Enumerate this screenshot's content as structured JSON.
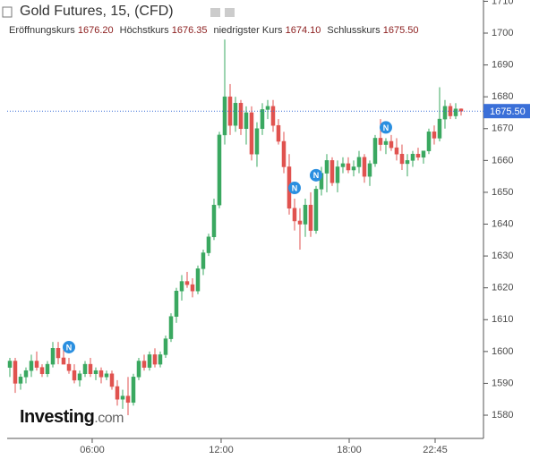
{
  "chart_data": {
    "type": "candlestick",
    "title": "Gold Futures, 15, (CFD)",
    "ohlc_legend": [
      {
        "label": "Eröffnungskurs",
        "value": "1676.20"
      },
      {
        "label": "Höchstkurs",
        "value": "1676.35"
      },
      {
        "label": "niedrigster Kurs",
        "value": "1674.10"
      },
      {
        "label": "Schlusskurs",
        "value": "1675.50"
      }
    ],
    "logo": {
      "name": "Investing",
      "suffix": ".com"
    },
    "up_color": "#3aa860",
    "down_color": "#e0524f",
    "x": [
      0,
      1,
      2,
      3,
      4,
      5,
      6,
      7,
      8,
      9,
      10,
      11,
      12,
      13,
      14,
      15,
      16,
      17,
      18,
      19,
      20,
      21,
      22,
      23,
      24,
      25,
      26,
      27,
      28,
      29,
      30,
      31,
      32,
      33,
      34,
      35,
      36,
      37,
      38,
      39,
      40,
      41,
      42,
      43,
      44,
      45,
      46,
      47,
      48,
      49,
      50,
      51,
      52,
      53,
      54,
      55,
      56,
      57,
      58,
      59,
      60,
      61,
      62,
      63,
      64,
      65,
      66,
      67,
      68,
      69,
      70,
      71,
      72,
      73,
      74,
      75,
      76,
      77,
      78,
      79,
      80,
      81,
      82,
      83,
      84
    ],
    "open": [
      1595,
      1597,
      1590,
      1592,
      1594,
      1597,
      1595,
      1593,
      1596,
      1601,
      1598,
      1596,
      1594,
      1591,
      1593,
      1596,
      1593,
      1594,
      1592,
      1593,
      1589,
      1585,
      1586,
      1584,
      1592,
      1597,
      1595,
      1599,
      1596,
      1599,
      1604,
      1611,
      1619,
      1622,
      1621,
      1619,
      1626,
      1631,
      1636,
      1646,
      1668,
      1680,
      1671,
      1678,
      1670,
      1675,
      1662,
      1670,
      1676,
      1677,
      1671,
      1666,
      1658,
      1645,
      1641,
      1640,
      1646,
      1638,
      1651,
      1656,
      1660,
      1653,
      1658,
      1659,
      1657,
      1658,
      1661,
      1655,
      1659,
      1667,
      1665,
      1666,
      1664,
      1662,
      1659,
      1660,
      1662,
      1661,
      1663,
      1669,
      1667,
      1673,
      1677,
      1674,
      1676.2
    ],
    "high": [
      1598,
      1598,
      1593,
      1595,
      1599,
      1600,
      1596,
      1597,
      1603,
      1603,
      1601,
      1598,
      1596,
      1594,
      1597,
      1598,
      1595,
      1595,
      1594,
      1594,
      1591,
      1588,
      1592,
      1593,
      1598,
      1599,
      1600,
      1601,
      1600,
      1605,
      1612,
      1620,
      1624,
      1625,
      1623,
      1627,
      1632,
      1637,
      1648,
      1669,
      1698,
      1684,
      1680,
      1679,
      1677,
      1677,
      1672,
      1678,
      1679,
      1679,
      1673,
      1669,
      1662,
      1648,
      1645,
      1648,
      1650,
      1652,
      1658,
      1662,
      1661,
      1660,
      1661,
      1661,
      1660,
      1663,
      1662,
      1660,
      1668,
      1673,
      1667,
      1668,
      1667,
      1665,
      1662,
      1663,
      1664,
      1663,
      1670,
      1671,
      1683,
      1679,
      1678,
      1678,
      1676.35
    ],
    "low": [
      1592,
      1587,
      1588,
      1590,
      1592,
      1594,
      1592,
      1592,
      1595,
      1596,
      1596,
      1593,
      1590,
      1589,
      1592,
      1592,
      1591,
      1590,
      1591,
      1588,
      1583,
      1582,
      1580,
      1583,
      1591,
      1594,
      1594,
      1595,
      1595,
      1598,
      1603,
      1609,
      1616,
      1620,
      1617,
      1618,
      1624,
      1630,
      1635,
      1645,
      1665,
      1668,
      1669,
      1668,
      1665,
      1660,
      1658,
      1668,
      1673,
      1669,
      1665,
      1656,
      1643,
      1638,
      1632,
      1636,
      1636,
      1637,
      1649,
      1650,
      1652,
      1650,
      1656,
      1656,
      1655,
      1656,
      1653,
      1652,
      1658,
      1663,
      1662,
      1663,
      1660,
      1657,
      1655,
      1658,
      1660,
      1659,
      1662,
      1665,
      1666,
      1670,
      1673,
      1673,
      1674.1
    ],
    "close": [
      1597,
      1590,
      1592,
      1594,
      1597,
      1595,
      1593,
      1596,
      1601,
      1598,
      1596,
      1594,
      1591,
      1593,
      1596,
      1593,
      1594,
      1592,
      1593,
      1589,
      1585,
      1586,
      1584,
      1592,
      1597,
      1595,
      1599,
      1596,
      1599,
      1604,
      1611,
      1619,
      1622,
      1621,
      1619,
      1626,
      1631,
      1636,
      1646,
      1668,
      1680,
      1671,
      1678,
      1670,
      1675,
      1662,
      1670,
      1676,
      1677,
      1671,
      1666,
      1658,
      1645,
      1641,
      1640,
      1646,
      1638,
      1651,
      1656,
      1660,
      1653,
      1658,
      1659,
      1657,
      1658,
      1661,
      1655,
      1659,
      1667,
      1665,
      1666,
      1664,
      1662,
      1659,
      1660,
      1662,
      1661,
      1663,
      1669,
      1667,
      1673,
      1677,
      1674,
      1676.2,
      1675.5
    ],
    "events": [
      {
        "x": 11,
        "label": "N"
      },
      {
        "x": 53,
        "label": "N"
      },
      {
        "x": 57,
        "label": "N"
      },
      {
        "x": 70,
        "label": "N"
      }
    ],
    "last_price": {
      "value": 1675.5,
      "label": "1675.50"
    },
    "price_color": "#3a6fd8",
    "event_color": "#2a8fe0",
    "xlim": [
      -0.5,
      88.17
    ],
    "xticks": [
      {
        "value": 15.33,
        "label": "06:00"
      },
      {
        "value": 39.33,
        "label": "12:00"
      },
      {
        "value": 63.17,
        "label": "18:00"
      },
      {
        "value": 79.17,
        "label": "22:45"
      }
    ],
    "ylim": [
      1572.7,
      1710.4
    ],
    "yticks": [
      1580,
      1590,
      1600,
      1610,
      1620,
      1630,
      1640,
      1650,
      1660,
      1670,
      1680,
      1690,
      1700,
      1710
    ]
  }
}
